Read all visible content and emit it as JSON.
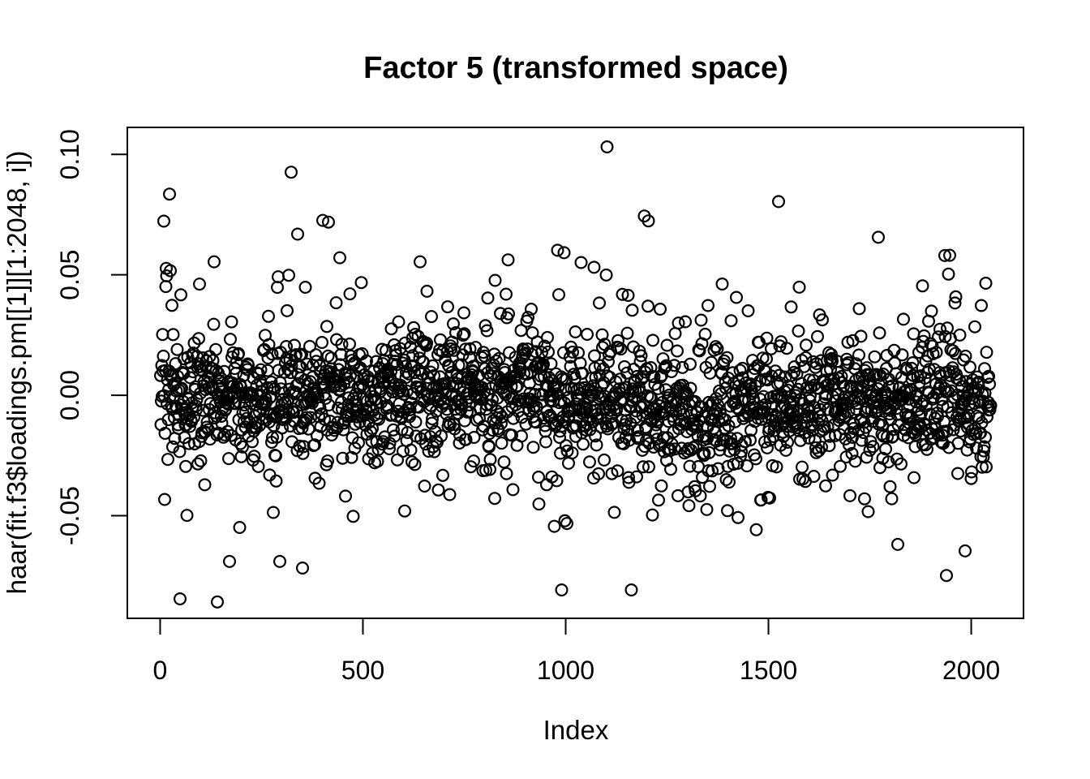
{
  "page": {
    "background": "#ffffff",
    "foreground": "#000000"
  },
  "chart_data": {
    "type": "scatter",
    "title": "Factor 5 (transformed space)",
    "xlabel": "Index",
    "ylabel": "haar(fit.f3$loadings.pm[[1]][1:2048, i])",
    "n_points": 2048,
    "x_series": "index 1:2048",
    "xlim": [
      -80.9,
      2128.9
    ],
    "ylim": [
      -0.0926,
      0.1112
    ],
    "x_ticks": {
      "values": [
        0,
        500,
        1000,
        1500,
        2000
      ],
      "labels": [
        "0",
        "500",
        "1000",
        "1500",
        "2000"
      ]
    },
    "y_ticks": {
      "values": [
        -0.05,
        0.0,
        0.05,
        0.1
      ],
      "labels": [
        "-0.05",
        "0.00",
        "0.05",
        "0.10"
      ]
    },
    "grid": false,
    "legend": null,
    "background": "#ffffff",
    "marker": {
      "shape": "open-circle",
      "radius_px": 6.9,
      "stroke_width_px": 2.2,
      "color": "#000000"
    },
    "bulk_model": {
      "description": "dense zero-centered noise band, estimated from pixels",
      "seed": 42,
      "mean_base": -0.002,
      "mean_waves": [
        {
          "amp": 0.0025,
          "scale": 310,
          "phase": 0.0
        },
        {
          "amp": 0.0015,
          "scale": 130,
          "phase": 1.3
        }
      ],
      "mixture": [
        {
          "w": 0.7,
          "sd": 0.0115
        },
        {
          "w": 0.24,
          "sd": 0.021
        },
        {
          "w": 0.06,
          "sd": 0.031
        }
      ],
      "clamp": 0.058
    },
    "outliers": [
      [
        9,
        0.0723
      ],
      [
        15,
        0.0527
      ],
      [
        23,
        0.0835
      ],
      [
        25,
        0.0517
      ],
      [
        49,
        -0.0845
      ],
      [
        133,
        0.0554
      ],
      [
        141,
        -0.0858
      ],
      [
        171,
        -0.069
      ],
      [
        295,
        -0.069
      ],
      [
        323,
        0.0926
      ],
      [
        339,
        0.0669
      ],
      [
        351,
        -0.0717
      ],
      [
        401,
        0.0726
      ],
      [
        415,
        0.0719
      ],
      [
        443,
        0.0571
      ],
      [
        641,
        0.0554
      ],
      [
        972,
        -0.0544
      ],
      [
        980,
        0.0602
      ],
      [
        990,
        -0.0808
      ],
      [
        996,
        0.0592
      ],
      [
        998,
        -0.0521
      ],
      [
        1038,
        0.0551
      ],
      [
        1102,
        0.1031
      ],
      [
        1162,
        -0.0808
      ],
      [
        1194,
        0.0744
      ],
      [
        1204,
        0.0724
      ],
      [
        1214,
        -0.0497
      ],
      [
        1470,
        -0.0558
      ],
      [
        1525,
        0.0804
      ],
      [
        1771,
        0.0656
      ],
      [
        1819,
        -0.0619
      ],
      [
        1935,
        0.058
      ],
      [
        1939,
        -0.0748
      ],
      [
        1947,
        0.0581
      ],
      [
        1985,
        -0.0646
      ]
    ]
  }
}
